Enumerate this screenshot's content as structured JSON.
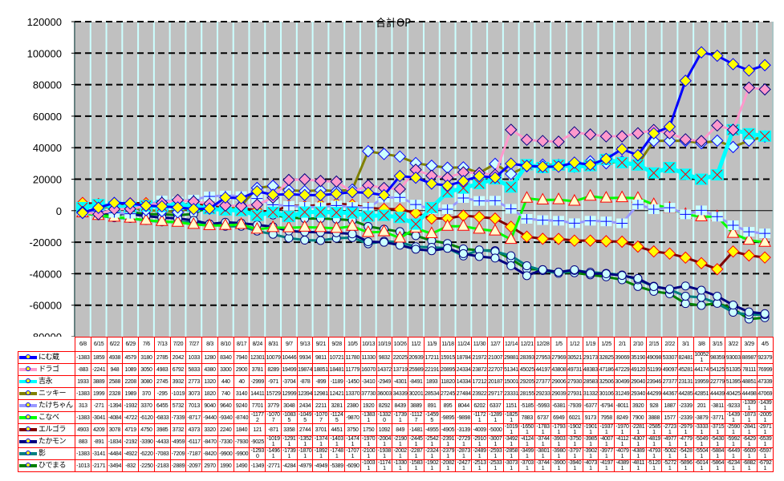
{
  "chart_data": {
    "type": "line",
    "title": "合計OP",
    "xlabel": "",
    "ylabel": "",
    "ylim": [
      -80000,
      120000
    ],
    "yticks": [
      -80000,
      -60000,
      -40000,
      -20000,
      0,
      20000,
      40000,
      60000,
      80000,
      100000,
      120000
    ],
    "grid": true,
    "legend": "data-table-left",
    "background": "#C0C0C0",
    "categories": [
      "6/8",
      "6/15",
      "6/22",
      "6/29",
      "7/6",
      "7/13",
      "7/20",
      "7/27",
      "8/3",
      "8/10",
      "8/17",
      "8/24",
      "8/31",
      "9/7",
      "9/13",
      "9/21",
      "9/28",
      "10/5",
      "10/13",
      "10/19",
      "10/26",
      "11/2",
      "11/9",
      "11/18",
      "11/24",
      "11/30",
      "12/7",
      "12/14",
      "12/21",
      "12/28",
      "1/5",
      "1/12",
      "1/19",
      "1/25",
      "2/1",
      "2/10",
      "2/15",
      "2/22",
      "3/1",
      "3/8",
      "3/15",
      "3/22",
      "3/29",
      "4/5"
    ],
    "series": [
      {
        "name": "にむ蔵",
        "color": "#0000FF",
        "marker": "diamond-yellow",
        "values": [
          -1383,
          1859,
          4938,
          4579,
          3180,
          2785,
          2042,
          1033,
          1280,
          8340,
          7940,
          12301,
          10079,
          10446,
          9934,
          9811,
          10721,
          11780,
          11330,
          9832,
          22025,
          20939,
          17211,
          15915,
          18784,
          21972,
          21007,
          29881,
          28393,
          27953,
          27969,
          30521,
          29173,
          32825,
          39069,
          35190,
          49098,
          53307,
          82481,
          100521,
          98359,
          93003,
          88987,
          92379
        ]
      },
      {
        "name": "ドラゴ",
        "color": "#FF99CC",
        "marker": "diamond-pink",
        "values": [
          -883,
          -2241,
          948,
          1089,
          3050,
          4983,
          6792,
          5833,
          4380,
          3300,
          2900,
          3781,
          8289,
          19499,
          19874,
          18851,
          18481,
          11779,
          16070,
          14372,
          13719,
          25989,
          22191,
          20895,
          24334,
          23872,
          22707,
          51341,
          45025,
          44197,
          43808,
          49731,
          48383,
          47186,
          47229,
          49120,
          51199,
          49097,
          45281,
          44174,
          54125,
          51335,
          78111,
          76999
        ]
      },
      {
        "name": "吉永",
        "color": "#00FFFF",
        "marker": "x-square",
        "values": [
          1933,
          3889,
          2588,
          2208,
          3080,
          2745,
          3932,
          2773,
          1320,
          440,
          40,
          -2999,
          -971,
          -3704,
          -878,
          -899,
          -1189,
          -1450,
          -3410,
          -2949,
          -4301,
          -8491,
          1893,
          11820,
          14334,
          17212,
          20187,
          15001,
          29205,
          27377,
          29006,
          27930,
          28583,
          32506,
          30499,
          29040,
          23946,
          27377,
          23131,
          19959,
          22779,
          51395,
          48851,
          47339
        ]
      },
      {
        "name": "ニッキー",
        "color": "#808000",
        "marker": "diamond-lightblue",
        "values": [
          -1383,
          1999,
          2328,
          1989,
          370,
          -295,
          -1019,
          3073,
          1820,
          740,
          3140,
          14411,
          15729,
          12999,
          12394,
          12981,
          12421,
          13370,
          37730,
          36003,
          34339,
          30201,
          28534,
          27245,
          27484,
          23922,
          29717,
          23331,
          28155,
          29233,
          29039,
          27931,
          31332,
          30106,
          31249,
          29340,
          44299,
          44367,
          44285,
          42851,
          44439,
          40425,
          44498,
          47069
        ]
      },
      {
        "name": "たけちゃん",
        "color": "#9999FF",
        "marker": "plus-square",
        "values": [
          313,
          -271,
          -1394,
          -1932,
          3370,
          6455,
          5732,
          7013,
          9040,
          9640,
          9240,
          7701,
          3779,
          3048,
          2434,
          2211,
          3281,
          2380,
          1920,
          8292,
          8439,
          3889,
          891,
          895,
          8044,
          6202,
          6337,
          1151,
          -5185,
          -5993,
          -6381,
          -7939,
          -6377,
          -6794,
          -8011,
          3920,
          928,
          1887,
          -2339,
          201,
          -3811,
          -9233,
          -13391,
          -14391
        ]
      },
      {
        "name": "こなべ",
        "color": "#00FF00",
        "marker": "triangle",
        "values": [
          -1383,
          -3041,
          -4084,
          -4722,
          -6120,
          -6833,
          -7339,
          -8717,
          -9440,
          -9340,
          -8740,
          -11772,
          -10707,
          -10835,
          -10495,
          -10707,
          -11245,
          -9870,
          -13831,
          -13320,
          -17391,
          -11127,
          -14595,
          -9895,
          -9898,
          -11721,
          -12891,
          -18251,
          7883,
          6737,
          6949,
          6021,
          9173,
          7958,
          8249,
          7900,
          3888,
          1577,
          -2339,
          -3879,
          -3771,
          -14391,
          -18731,
          -20051
        ]
      },
      {
        "name": "エルゴラ",
        "color": "#800000",
        "marker": "diamond-yellow-red",
        "values": [
          4903,
          4209,
          3078,
          4719,
          4750,
          3985,
          3732,
          4373,
          3320,
          2240,
          1840,
          121,
          -871,
          3358,
          2744,
          3701,
          4451,
          3750,
          1750,
          1092,
          849,
          -1481,
          -4955,
          -4905,
          -3139,
          -4009,
          -5000,
          -10191,
          -16501,
          -17831,
          -17931,
          -19021,
          -19011,
          -19371,
          -19701,
          -22811,
          -25851,
          -27231,
          -29791,
          -33331,
          -37151,
          -25901,
          -28411,
          -29711
        ]
      },
      {
        "name": "たかモン",
        "color": "#000080",
        "marker": "circle",
        "values": [
          883,
          -891,
          -1834,
          -2192,
          -3390,
          -4433,
          -4959,
          -6117,
          -8470,
          -7330,
          -7930,
          -9025,
          -10191,
          -12911,
          -13521,
          -13741,
          -14031,
          -14741,
          -19701,
          -20041,
          -21901,
          -24451,
          -25421,
          -23911,
          -27291,
          -29101,
          -30071,
          -34921,
          -41241,
          -37441,
          -39031,
          -37501,
          -39851,
          -40071,
          -41121,
          -43071,
          -48191,
          -49771,
          -47791,
          -50491,
          -54301,
          -59921,
          -64291,
          -65391
        ]
      },
      {
        "name": "影",
        "color": "#008080",
        "marker": "circle",
        "values": [
          -1383,
          -3141,
          -4484,
          -4922,
          -6220,
          -7083,
          -7209,
          -7187,
          -8420,
          -9900,
          -9900,
          -12930,
          -14961,
          -17391,
          -18701,
          -18921,
          -17481,
          -17071,
          -21001,
          -19381,
          -20021,
          -22871,
          -23241,
          -23791,
          -28731,
          -24891,
          -25931,
          -28581,
          -34991,
          -38011,
          -39801,
          -37971,
          -39021,
          -39771,
          -40791,
          -43891,
          -47931,
          -50021,
          -54281,
          -55041,
          -58841,
          -64491,
          -66091,
          -65971
        ]
      },
      {
        "name": "ひでまる",
        "color": "#008000",
        "marker": "circle",
        "values": [
          -1013,
          -2171,
          -3494,
          -832,
          -2250,
          -2183,
          -2889,
          -2097,
          2970,
          1990,
          1490,
          -1349,
          -2771,
          -4284,
          -4979,
          -4949,
          -5389,
          -6090,
          -10031,
          -11741,
          -13301,
          -15831,
          -19021,
          -20821,
          -24271,
          -25131,
          -25331,
          -30731,
          -37031,
          -37441,
          -39001,
          -39401,
          -40731,
          -41971,
          -43891,
          -48111,
          -51201,
          -52721,
          -58961,
          -60141,
          -58641,
          -62341,
          -68821,
          -67921
        ]
      }
    ]
  }
}
